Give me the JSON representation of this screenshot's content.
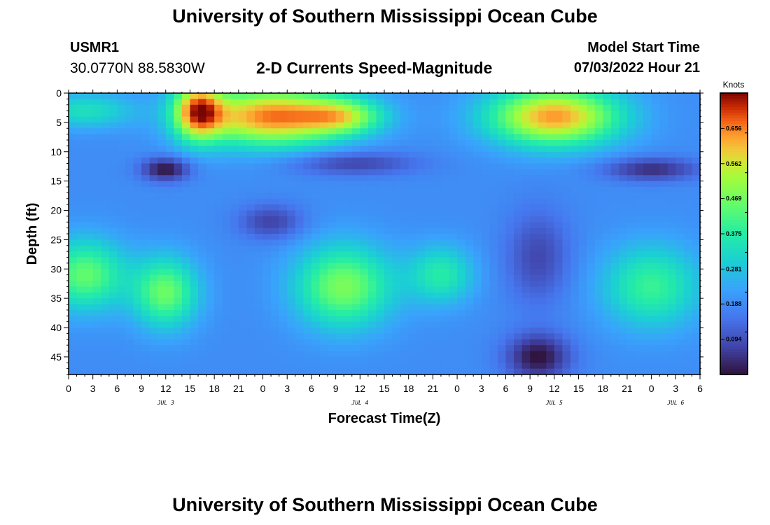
{
  "header": {
    "title": "University of Southern Mississippi Ocean Cube",
    "station": "USMR1",
    "coords": "30.0770N  88.5830W",
    "subtitle": "2-D Currents Speed-Magnitude",
    "start_label": "Model Start Time",
    "start_value": "07/03/2022 Hour 21"
  },
  "footer": {
    "title": "University of Southern Mississippi Ocean Cube"
  },
  "chart_data": {
    "type": "heatmap",
    "title": "2-D Currents Speed-Magnitude",
    "xlabel": "Forecast Time(Z)",
    "ylabel": "Depth (ft)",
    "x_tick_labels": [
      "0",
      "3",
      "6",
      "9",
      "12",
      "15",
      "18",
      "21",
      "0",
      "3",
      "6",
      "9",
      "12",
      "15",
      "18",
      "21",
      "0",
      "3",
      "6",
      "9",
      "12",
      "15",
      "18",
      "21",
      "0",
      "3",
      "6"
    ],
    "day_labels": [
      {
        "label": "JUL 3",
        "hour": 12
      },
      {
        "label": "JUL 4",
        "hour": 36
      },
      {
        "label": "JUL 5",
        "hour": 60
      },
      {
        "label": "JUL 6",
        "hour": 75
      }
    ],
    "xlim_hours": [
      0,
      78
    ],
    "y_ticks": [
      0,
      5,
      10,
      15,
      20,
      25,
      30,
      35,
      40,
      45
    ],
    "ylim": [
      0,
      48
    ],
    "y_inverted": true,
    "colorbar": {
      "unit": "Knots",
      "ticks": [
        "0.656",
        "0.562",
        "0.469",
        "0.375",
        "0.281",
        "0.188",
        "0.094"
      ],
      "tick_values": [
        0.656,
        0.562,
        0.469,
        0.375,
        0.281,
        0.188,
        0.094
      ],
      "range": [
        0,
        0.75
      ],
      "colormap": "turbo"
    },
    "field_blobs": [
      {
        "hour": 25,
        "depth": 4,
        "value": 0.66,
        "sh": 9,
        "sd": 5
      },
      {
        "hour": 16,
        "depth": 3,
        "value": 0.6,
        "sh": 3,
        "sd": 5
      },
      {
        "hour": 34,
        "depth": 4,
        "value": 0.44,
        "sh": 5,
        "sd": 3
      },
      {
        "hour": 60,
        "depth": 4,
        "value": 0.64,
        "sh": 8,
        "sd": 5
      },
      {
        "hour": 2,
        "depth": 3,
        "value": 0.34,
        "sh": 6,
        "sd": 3
      },
      {
        "hour": 2,
        "depth": 31,
        "value": 0.45,
        "sh": 5,
        "sd": 6
      },
      {
        "hour": 12,
        "depth": 34,
        "value": 0.46,
        "sh": 4,
        "sd": 6
      },
      {
        "hour": 34,
        "depth": 33,
        "value": 0.48,
        "sh": 6,
        "sd": 7
      },
      {
        "hour": 46,
        "depth": 31,
        "value": 0.37,
        "sh": 4,
        "sd": 5
      },
      {
        "hour": 72,
        "depth": 33,
        "value": 0.4,
        "sh": 6,
        "sd": 7
      },
      {
        "hour": 12,
        "depth": 13,
        "value": 0.0,
        "sh": 3,
        "sd": 2
      },
      {
        "hour": 35,
        "depth": 12,
        "value": 0.07,
        "sh": 8,
        "sd": 2
      },
      {
        "hour": 72,
        "depth": 13,
        "value": 0.04,
        "sh": 6,
        "sd": 2
      },
      {
        "hour": 25,
        "depth": 22,
        "value": 0.07,
        "sh": 4,
        "sd": 3
      },
      {
        "hour": 58,
        "depth": 45,
        "value": 0.0,
        "sh": 4,
        "sd": 4
      },
      {
        "hour": 58,
        "depth": 28,
        "value": 0.08,
        "sh": 4,
        "sd": 8
      }
    ],
    "base_value": 0.19
  }
}
